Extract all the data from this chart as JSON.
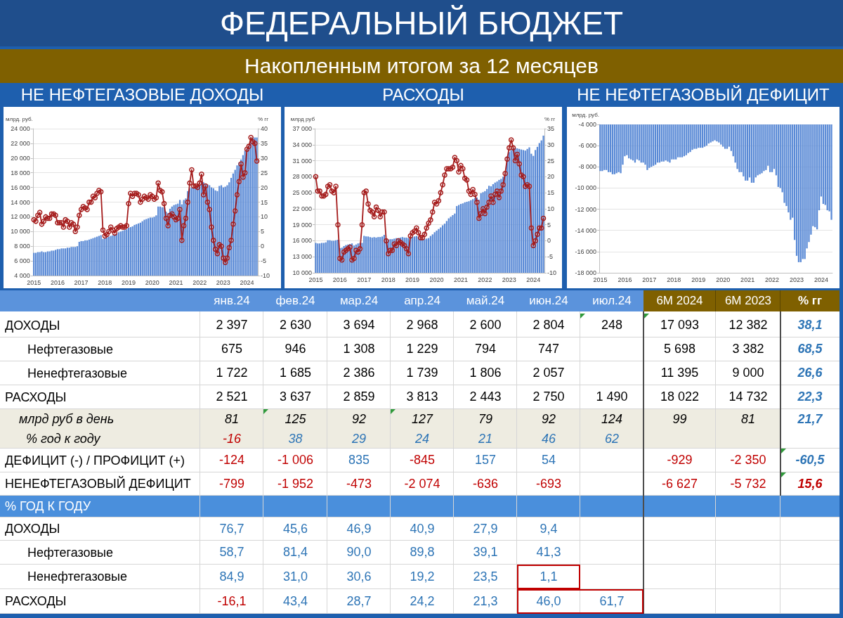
{
  "chart_data": [
    {
      "type": "other",
      "title": "ФЕДЕРАЛЬНЫЙ БЮДЖЕТ",
      "subtitle": "Накопленным итогом за 12 месяцев"
    },
    {
      "type": "bar",
      "title": "НЕ НЕФТЕГАЗОВЫЕ ДОХОДЫ",
      "ylabel": "млрд. руб.",
      "y2label": "% гг",
      "categories": [
        "2015",
        null,
        null,
        null,
        null,
        null,
        null,
        null,
        null,
        null,
        null,
        null,
        "2016",
        null,
        null,
        null,
        null,
        null,
        null,
        null,
        null,
        null,
        null,
        null,
        "2017",
        null,
        null,
        null,
        null,
        null,
        null,
        null,
        null,
        null,
        null,
        null,
        "2018",
        null,
        null,
        null,
        null,
        null,
        null,
        null,
        null,
        null,
        null,
        null,
        "2019",
        null,
        null,
        null,
        null,
        null,
        null,
        null,
        null,
        null,
        null,
        null,
        "2020",
        null,
        null,
        null,
        null,
        null,
        null,
        null,
        null,
        null,
        null,
        null,
        "2021",
        null,
        null,
        null,
        null,
        null,
        null,
        null,
        null,
        null,
        null,
        null,
        "2022",
        null,
        null,
        null,
        null,
        null,
        null,
        null,
        null,
        null,
        null,
        null,
        "2023",
        null,
        null,
        null,
        null,
        null,
        null,
        null,
        null,
        null,
        null,
        null,
        "2024",
        null,
        null,
        null,
        null,
        null
      ],
      "series": [
        {
          "type": "bar",
          "color": "#5a8ad6",
          "values": [
            7100,
            7100,
            7200,
            7200,
            7300,
            7200,
            7200,
            7300,
            7300,
            7400,
            7400,
            7500,
            7600,
            7600,
            7700,
            7700,
            7700,
            7800,
            7800,
            7900,
            7900,
            7900,
            8000,
            8600,
            8700,
            8700,
            8800,
            8800,
            8900,
            9000,
            9100,
            9200,
            9300,
            9400,
            9500,
            9000,
            9100,
            9200,
            9300,
            9400,
            9500,
            9600,
            9700,
            9900,
            10000,
            10100,
            10200,
            10300,
            10500,
            10600,
            10700,
            10900,
            11000,
            11100,
            11200,
            11400,
            11600,
            11700,
            11800,
            11900,
            11900,
            12000,
            12200,
            13400,
            13400,
            13300,
            13300,
            12700,
            12500,
            13100,
            13400,
            13600,
            13700,
            13800,
            14300,
            13700,
            14300,
            14500,
            15500,
            15900,
            16000,
            16000,
            16000,
            16100,
            16300,
            16900,
            16700,
            16500,
            16400,
            16300,
            16000,
            15900,
            15600,
            15500,
            16200,
            16300,
            16000,
            16100,
            16300,
            16700,
            17300,
            17900,
            18400,
            19000,
            19400,
            19800,
            20400,
            21000,
            21300,
            21700,
            22300,
            22800,
            22800,
            22800
          ]
        },
        {
          "type": "line",
          "axis": "y2",
          "color": "#a51c1c",
          "values": [
            9.0,
            8.5,
            10.5,
            11.5,
            7.5,
            8.5,
            10.0,
            9.5,
            9.5,
            11.0,
            11.0,
            10.5,
            8.0,
            8.0,
            8.0,
            6.5,
            9.0,
            8.5,
            6.5,
            8.0,
            7.5,
            5.0,
            6.5,
            10.5,
            12.5,
            13.5,
            13.0,
            12.5,
            15.0,
            15.0,
            17.0,
            16.5,
            18.0,
            19.0,
            18.5,
            5.5,
            3.5,
            4.0,
            5.0,
            6.5,
            5.5,
            4.5,
            6.0,
            6.5,
            7.0,
            6.5,
            6.5,
            7.0,
            14.5,
            18.0,
            17.0,
            18.0,
            18.0,
            17.5,
            15.0,
            16.0,
            17.0,
            16.5,
            16.0,
            17.5,
            17.0,
            16.0,
            16.5,
            21.5,
            19.0,
            18.5,
            14.5,
            9.5,
            7.0,
            10.5,
            11.0,
            10.0,
            9.0,
            9.5,
            12.5,
            2.0,
            7.0,
            9.5,
            15.0,
            21.5,
            26.0,
            20.5,
            20.5,
            20.0,
            21.5,
            24.5,
            17.5,
            20.5,
            15.0,
            12.5,
            6.5,
            2.0,
            -1.0,
            -2.5,
            0.5,
            0.0,
            -4.0,
            -5.5,
            -4.0,
            -0.5,
            2.0,
            7.5,
            12.0,
            17.5,
            22.0,
            28.0,
            23.5,
            25.0,
            33.0,
            34.0,
            37.0,
            35.5,
            35.0,
            29.0
          ]
        }
      ],
      "ylim": [
        4000,
        24000
      ],
      "yticks": [
        {
          "value": 4000,
          "label": "4 000"
        },
        {
          "value": 6000,
          "label": "6 000"
        },
        {
          "value": 8000,
          "label": "8 000"
        },
        {
          "value": 10000,
          "label": "10 000"
        },
        {
          "value": 12000,
          "label": "12 000"
        },
        {
          "value": 14000,
          "label": "14 000"
        },
        {
          "value": 16000,
          "label": "16 000"
        },
        {
          "value": 18000,
          "label": "18 000"
        },
        {
          "value": 20000,
          "label": "20 000"
        },
        {
          "value": 22000,
          "label": "22 000"
        },
        {
          "value": 24000,
          "label": "24 000"
        }
      ],
      "y2lim": [
        -10,
        40
      ],
      "y2ticks": [
        -10,
        -5,
        0,
        5,
        10,
        15,
        20,
        25,
        30,
        35,
        40
      ],
      "grid": "y",
      "marker": "circle"
    },
    {
      "type": "bar",
      "title": "РАСХОДЫ",
      "ylabel": "млрд руб",
      "y2label": "% гг",
      "categories": [
        "2015",
        null,
        null,
        null,
        null,
        null,
        null,
        null,
        null,
        null,
        null,
        null,
        "2016",
        null,
        null,
        null,
        null,
        null,
        null,
        null,
        null,
        null,
        null,
        null,
        "2017",
        null,
        null,
        null,
        null,
        null,
        null,
        null,
        null,
        null,
        null,
        null,
        "2018",
        null,
        null,
        null,
        null,
        null,
        null,
        null,
        null,
        null,
        null,
        null,
        "2019",
        null,
        null,
        null,
        null,
        null,
        null,
        null,
        null,
        null,
        null,
        null,
        "2020",
        null,
        null,
        null,
        null,
        null,
        null,
        null,
        null,
        null,
        null,
        null,
        "2021",
        null,
        null,
        null,
        null,
        null,
        null,
        null,
        null,
        null,
        null,
        null,
        "2022",
        null,
        null,
        null,
        null,
        null,
        null,
        null,
        null,
        null,
        null,
        null,
        "2023",
        null,
        null,
        null,
        null,
        null,
        null,
        null,
        null,
        null,
        null,
        null,
        "2024",
        null,
        null,
        null,
        null,
        null
      ],
      "series": [
        {
          "type": "bar",
          "color": "#5a8ad6",
          "values": [
            15600,
            15500,
            15500,
            15600,
            15600,
            15700,
            16100,
            16100,
            16000,
            16000,
            16100,
            16200,
            14600,
            14700,
            15000,
            15200,
            15300,
            15400,
            15500,
            15100,
            15300,
            15500,
            15600,
            15600,
            16900,
            16800,
            16800,
            16700,
            16600,
            16700,
            16600,
            16700,
            16700,
            16800,
            17100,
            16300,
            16200,
            16300,
            16300,
            16400,
            16500,
            16500,
            16600,
            16700,
            16600,
            16600,
            16500,
            16500,
            16700,
            16800,
            16900,
            16700,
            16400,
            16300,
            16300,
            16400,
            16500,
            16900,
            17200,
            17600,
            17900,
            18200,
            18500,
            18900,
            19200,
            19700,
            20200,
            20500,
            20800,
            21100,
            22500,
            22700,
            22900,
            23000,
            23200,
            23300,
            23400,
            23600,
            23800,
            24000,
            24100,
            23700,
            24900,
            25100,
            25300,
            25700,
            26300,
            26200,
            26600,
            26900,
            27100,
            27400,
            27600,
            28000,
            28800,
            31800,
            32600,
            33000,
            33300,
            33400,
            33300,
            33200,
            33100,
            33000,
            32900,
            33200,
            33500,
            32300,
            31900,
            33000,
            33600,
            34300,
            34800,
            35700
          ]
        },
        {
          "type": "line",
          "axis": "y2",
          "color": "#a51c1c",
          "values": [
            20.0,
            15.5,
            15.5,
            14.0,
            14.0,
            14.5,
            17.0,
            17.5,
            15.5,
            15.0,
            17.0,
            5.0,
            -5.5,
            -6.0,
            -3.5,
            -3.0,
            -2.5,
            -2.0,
            -6.0,
            -5.5,
            -3.0,
            -3.5,
            -2.5,
            5.0,
            15.0,
            15.5,
            11.5,
            9.5,
            9.0,
            7.5,
            10.5,
            9.5,
            7.5,
            9.0,
            9.0,
            0.0,
            -4.0,
            -3.0,
            -3.0,
            -1.0,
            -1.5,
            0.0,
            -0.5,
            -1.0,
            -1.5,
            -2.5,
            -4.0,
            1.5,
            2.5,
            3.0,
            4.0,
            2.5,
            1.0,
            1.0,
            2.0,
            4.0,
            5.5,
            6.5,
            9.0,
            12.0,
            11.5,
            12.5,
            15.0,
            17.5,
            20.5,
            22.5,
            22.5,
            22.5,
            23.0,
            26.0,
            25.0,
            21.5,
            23.5,
            22.5,
            19.5,
            19.0,
            15.5,
            14.5,
            16.0,
            14.5,
            12.0,
            7.0,
            8.5,
            10.0,
            8.5,
            10.5,
            12.0,
            14.0,
            12.0,
            14.5,
            15.5,
            13.5,
            15.5,
            17.5,
            21.0,
            25.5,
            29.0,
            31.5,
            29.0,
            25.0,
            27.0,
            24.0,
            20.5,
            20.0,
            17.0,
            17.5,
            17.0,
            4.0,
            -1.5,
            0.0,
            2.0,
            4.0,
            4.0,
            7.0
          ]
        }
      ],
      "ylim": [
        10000,
        37000
      ],
      "yticks": [
        {
          "value": 10000,
          "label": "10 000"
        },
        {
          "value": 13000,
          "label": "13 000"
        },
        {
          "value": 16000,
          "label": "16 000"
        },
        {
          "value": 19000,
          "label": "19 000"
        },
        {
          "value": 22000,
          "label": "22 000"
        },
        {
          "value": 25000,
          "label": "25 000"
        },
        {
          "value": 28000,
          "label": "28 000"
        },
        {
          "value": 31000,
          "label": "31 000"
        },
        {
          "value": 34000,
          "label": "34 000"
        },
        {
          "value": 37000,
          "label": "37 000"
        }
      ],
      "y2lim": [
        -10,
        35
      ],
      "y2ticks": [
        -10,
        -5,
        0,
        5,
        10,
        15,
        20,
        25,
        30,
        35
      ],
      "grid": "y",
      "marker": "circle"
    },
    {
      "type": "bar",
      "title": "НЕ НЕФТЕГАЗОВЫЙ ДЕФИЦИТ",
      "ylabel": "млрд. руб.",
      "color": "#5a8ad6",
      "categories": [
        "2015",
        null,
        null,
        null,
        null,
        null,
        null,
        null,
        null,
        null,
        null,
        null,
        "2016",
        null,
        null,
        null,
        null,
        null,
        null,
        null,
        null,
        null,
        null,
        null,
        "2017",
        null,
        null,
        null,
        null,
        null,
        null,
        null,
        null,
        null,
        null,
        null,
        "2018",
        null,
        null,
        null,
        null,
        null,
        null,
        null,
        null,
        null,
        null,
        null,
        "2019",
        null,
        null,
        null,
        null,
        null,
        null,
        null,
        null,
        null,
        null,
        null,
        "2020",
        null,
        null,
        null,
        null,
        null,
        null,
        null,
        null,
        null,
        null,
        null,
        "2021",
        null,
        null,
        null,
        null,
        null,
        null,
        null,
        null,
        null,
        null,
        null,
        "2022",
        null,
        null,
        null,
        null,
        null,
        null,
        null,
        null,
        null,
        null,
        null,
        "2023",
        null,
        null,
        null,
        null,
        null,
        null,
        null,
        null,
        null,
        null,
        null,
        "2024",
        null,
        null,
        null,
        null,
        null
      ],
      "values": [
        -8400,
        -8400,
        -8300,
        -8300,
        -8500,
        -8500,
        -8700,
        -8700,
        -8600,
        -8500,
        -8600,
        -7800,
        -7000,
        -6900,
        -7200,
        -7300,
        -7400,
        -7600,
        -7300,
        -7400,
        -7600,
        -7600,
        -7800,
        -8300,
        -8100,
        -8000,
        -7900,
        -7800,
        -7600,
        -7600,
        -7500,
        -7500,
        -7400,
        -7500,
        -7600,
        -7300,
        -7300,
        -7300,
        -7100,
        -7100,
        -7100,
        -7000,
        -6900,
        -6700,
        -6600,
        -6400,
        -6300,
        -6300,
        -6200,
        -6200,
        -6200,
        -6100,
        -6000,
        -5800,
        -5700,
        -5600,
        -5500,
        -5600,
        -5700,
        -5900,
        -6100,
        -6300,
        -6300,
        -6100,
        -6500,
        -7000,
        -7600,
        -8200,
        -8500,
        -8500,
        -8900,
        -9300,
        -9300,
        -9000,
        -9500,
        -9500,
        -9000,
        -8800,
        -8700,
        -8600,
        -8400,
        -8300,
        -7900,
        -8500,
        -8500,
        -8200,
        -8800,
        -9900,
        -10000,
        -10400,
        -11400,
        -11700,
        -12300,
        -13000,
        -12800,
        -14900,
        -16400,
        -17000,
        -17000,
        -16700,
        -16700,
        -15700,
        -15100,
        -14400,
        -13600,
        -13700,
        -13900,
        -12100,
        -10800,
        -11500,
        -11600,
        -12100,
        -12200,
        -13000
      ],
      "ylim": [
        -18000,
        -4000
      ],
      "yticks": [
        {
          "value": -18000,
          "label": "-18 000"
        },
        {
          "value": -16000,
          "label": "-16 000"
        },
        {
          "value": -14000,
          "label": "-14 000"
        },
        {
          "value": -12000,
          "label": "-12 000"
        },
        {
          "value": -10000,
          "label": "-10 000"
        },
        {
          "value": -8000,
          "label": "-8 000"
        },
        {
          "value": -6000,
          "label": "-6 000"
        },
        {
          "value": -4000,
          "label": "-4 000"
        }
      ],
      "grid": "y"
    },
    {
      "type": "other",
      "categories": [
        "янв.24",
        "фев.24",
        "мар.24",
        "апр.24",
        "май.24",
        "июн.24",
        "июл.24",
        "6M 2024",
        "6M 2023",
        "% гг"
      ],
      "y_categories": [
        "ДОХОДЫ",
        "Нефтегазовые",
        "Ненефтегазовые",
        "РАСХОДЫ",
        "млрд руб в день",
        "% год к году",
        "ДЕФИЦИТ (-) / ПРОФИЦИТ (+)",
        "НЕНЕФТЕГАЗОВЫЙ ДЕФИЦИТ",
        "% ГОД К ГОДУ",
        "ДОХОДЫ",
        "Нефтегазовые",
        "Ненефтегазовые",
        "РАСХОДЫ"
      ],
      "cell_labels": [
        [
          "2 397",
          "2 630",
          "3 694",
          "2 968",
          "2 600",
          "2 804",
          "248",
          "17 093",
          "12 382",
          "38,1"
        ],
        [
          "675",
          "946",
          "1 308",
          "1 229",
          "794",
          "747",
          null,
          "5 698",
          "3 382",
          "68,5"
        ],
        [
          "1 722",
          "1 685",
          "2 386",
          "1 739",
          "1 806",
          "2 057",
          null,
          "11 395",
          "9 000",
          "26,6"
        ],
        [
          "2 521",
          "3 637",
          "2 859",
          "3 813",
          "2 443",
          "2 750",
          "1 490",
          "18 022",
          "14 732",
          "22,3"
        ],
        [
          "81",
          "125",
          "92",
          "127",
          "79",
          "92",
          "124",
          "99",
          "81",
          "21,7"
        ],
        [
          "-16",
          "38",
          "29",
          "24",
          "21",
          "46",
          "62",
          null,
          null,
          null
        ],
        [
          "-124",
          "-1 006",
          "835",
          "-845",
          "157",
          "54",
          null,
          "-929",
          "-2 350",
          "-60,5"
        ],
        [
          "-799",
          "-1 952",
          "-473",
          "-2 074",
          "-636",
          "-693",
          null,
          "-6 627",
          "-5 732",
          "15,6"
        ],
        [
          null,
          null,
          null,
          null,
          null,
          null,
          null,
          null,
          null,
          null
        ],
        [
          "76,7",
          "45,6",
          "46,9",
          "40,9",
          "27,9",
          "9,4",
          null,
          null,
          null,
          null
        ],
        [
          "58,7",
          "81,4",
          "90,0",
          "89,8",
          "39,1",
          "41,3",
          null,
          null,
          null,
          null
        ],
        [
          "84,9",
          "31,0",
          "30,6",
          "19,2",
          "23,5",
          "1,1",
          null,
          null,
          null,
          null
        ],
        [
          "-16,1",
          "43,4",
          "28,7",
          "24,2",
          "21,3",
          "46,0",
          "61,7",
          null,
          null,
          null
        ]
      ],
      "colors": [
        [
          "#000000",
          "#000000",
          "#000000",
          "#000000",
          "#000000",
          "#000000",
          "#000000",
          "#000000",
          "#000000",
          "#2e75b6"
        ],
        [
          "#000000",
          "#000000",
          "#000000",
          "#000000",
          "#000000",
          "#000000",
          null,
          "#000000",
          "#000000",
          "#2e75b6"
        ],
        [
          "#000000",
          "#000000",
          "#000000",
          "#000000",
          "#000000",
          "#000000",
          null,
          "#000000",
          "#000000",
          "#2e75b6"
        ],
        [
          "#000000",
          "#000000",
          "#000000",
          "#000000",
          "#000000",
          "#000000",
          "#000000",
          "#000000",
          "#000000",
          "#2e75b6"
        ],
        [
          "#000000",
          "#000000",
          "#000000",
          "#000000",
          "#000000",
          "#000000",
          "#000000",
          "#000000",
          "#000000",
          "#2e75b6"
        ],
        [
          "#c00000",
          "#2e75b6",
          "#2e75b6",
          "#2e75b6",
          "#2e75b6",
          "#2e75b6",
          "#2e75b6",
          null,
          null,
          null
        ],
        [
          "#c00000",
          "#c00000",
          "#2e75b6",
          "#c00000",
          "#2e75b6",
          "#2e75b6",
          null,
          "#c00000",
          "#c00000",
          "#2e75b6"
        ],
        [
          "#c00000",
          "#c00000",
          "#c00000",
          "#c00000",
          "#c00000",
          "#c00000",
          null,
          "#c00000",
          "#c00000",
          "#c00000"
        ],
        [
          null,
          null,
          null,
          null,
          null,
          null,
          null,
          null,
          null,
          null
        ],
        [
          "#2e75b6",
          "#2e75b6",
          "#2e75b6",
          "#2e75b6",
          "#2e75b6",
          "#2e75b6",
          null,
          null,
          null,
          null
        ],
        [
          "#2e75b6",
          "#2e75b6",
          "#2e75b6",
          "#2e75b6",
          "#2e75b6",
          "#2e75b6",
          null,
          null,
          null,
          null
        ],
        [
          "#2e75b6",
          "#2e75b6",
          "#2e75b6",
          "#2e75b6",
          "#2e75b6",
          "#2e75b6",
          null,
          null,
          null,
          null
        ],
        [
          "#c00000",
          "#2e75b6",
          "#2e75b6",
          "#2e75b6",
          "#2e75b6",
          "#2e75b6",
          "#2e75b6",
          null,
          null,
          null
        ]
      ]
    }
  ]
}
